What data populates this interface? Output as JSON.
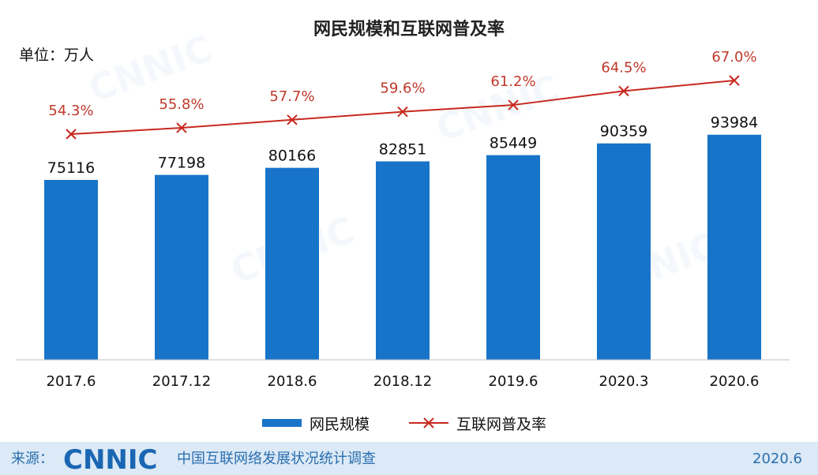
{
  "header": {
    "title": "网民规模和互联网普及率",
    "unit": "单位：万人"
  },
  "chart_data": {
    "type": "bar",
    "categories": [
      "2017.6",
      "2017.12",
      "2018.6",
      "2018.12",
      "2019.6",
      "2020.3",
      "2020.6"
    ],
    "series": [
      {
        "name": "网民规模",
        "type": "bar",
        "values": [
          75116,
          77198,
          80166,
          82851,
          85449,
          90359,
          93984
        ],
        "color": "#1874c8"
      },
      {
        "name": "互联网普及率",
        "type": "line",
        "values": [
          54.3,
          55.8,
          57.7,
          59.6,
          61.2,
          64.5,
          67.0
        ],
        "labels": [
          "54.3%",
          "55.8%",
          "57.7%",
          "59.6%",
          "61.2%",
          "64.5%",
          "67.0%"
        ],
        "color": "#c8281e",
        "marker": "x"
      }
    ],
    "grid": false,
    "legend": "bottom-center"
  },
  "footer": {
    "source_label": "来源：",
    "logo": "CNNIC",
    "org": "中国互联网络发展状况统计调查",
    "date": "2020.6"
  },
  "colors": {
    "bar": "#1874c8",
    "line": "#c8281e",
    "footer_band": "#dce9f6",
    "accent_text": "#2a6fb0"
  }
}
